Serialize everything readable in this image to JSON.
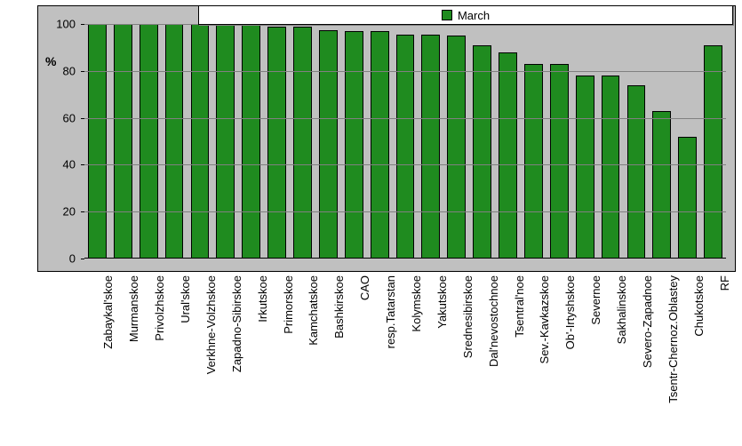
{
  "chart": {
    "type": "bar",
    "legend": {
      "label": "March",
      "swatch_color": "#1f8b1f"
    },
    "ylabel": "%",
    "ylim": [
      0,
      100
    ],
    "ytick_step": 20,
    "label_fontsize": 13,
    "title_fontsize": 14,
    "background_color": "#c0c0c0",
    "grid_color": "#808080",
    "bar_color": "#1f8b1f",
    "bar_border_color": "#000000",
    "plot_border_color": "#000000",
    "bar_width_ratio": 0.72,
    "categories": [
      "Zabaykal'skoe",
      "Murmanskoe",
      "Privolzhskoe",
      "Ural'skoe",
      "Verkhne-Volzhskoe",
      "Zapadno-Sibirskoe",
      "Irkutskoe",
      "Primorskoe",
      "Kamchatskoe",
      "Bashkirskoe",
      "CAO",
      "resp.Tatarstan",
      "Kolymskoe",
      "Yakutskoe",
      "Srednesibirskoe",
      "Dal'nevostochnoe",
      "Tsentral'noe",
      "Sev.-Kavkazskoe",
      "Ob'-Irtyshskoe",
      "Severnoe",
      "Sakhalinskoe",
      "Severo-Zapadnoe",
      "Tsentr-Chernoz.Oblastey",
      "Chukotskoe",
      "RF"
    ],
    "values": [
      100,
      100,
      100,
      100,
      100,
      100,
      100,
      99,
      99,
      97.5,
      97,
      97,
      95.5,
      95.5,
      95,
      91,
      88,
      83,
      83,
      78,
      78,
      74,
      63,
      52,
      91
    ]
  }
}
